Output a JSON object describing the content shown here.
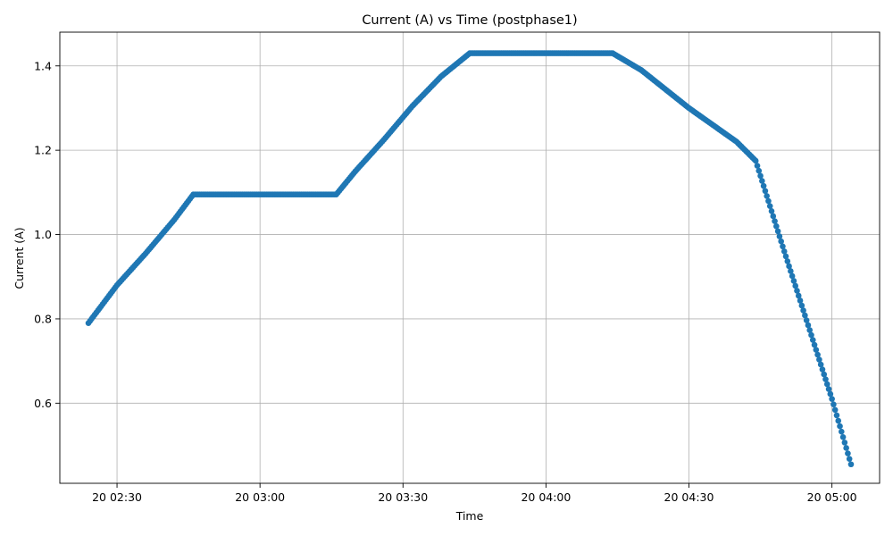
{
  "chart_data": {
    "type": "scatter",
    "title": "Current (A) vs Time (postphase1)",
    "xlabel": "Time",
    "ylabel": "Current (A)",
    "x_unit": "time of day (HH:MM), day 20",
    "xlim": [
      "02:18",
      "05:10"
    ],
    "ylim": [
      0.41,
      1.48
    ],
    "grid": true,
    "color": "#1f77b4",
    "x_ticks": [
      {
        "value": "02:30",
        "label": "20 02:30"
      },
      {
        "value": "03:00",
        "label": "20 03:00"
      },
      {
        "value": "03:30",
        "label": "20 03:30"
      },
      {
        "value": "04:00",
        "label": "20 04:00"
      },
      {
        "value": "04:30",
        "label": "20 04:30"
      },
      {
        "value": "05:00",
        "label": "20 05:00"
      }
    ],
    "y_ticks": [
      {
        "value": 0.6,
        "label": "0.6"
      },
      {
        "value": 0.8,
        "label": "0.8"
      },
      {
        "value": 1.0,
        "label": "1.0"
      },
      {
        "value": 1.2,
        "label": "1.2"
      },
      {
        "value": 1.4,
        "label": "1.4"
      }
    ],
    "series": [
      {
        "x": [
          "02:24",
          "02:30",
          "02:36",
          "02:42",
          "02:46",
          "03:00",
          "03:10",
          "03:16",
          "03:20",
          "03:26",
          "03:32",
          "03:38",
          "03:44",
          "04:00",
          "04:14",
          "04:20",
          "04:30",
          "04:40",
          "04:44",
          "04:50",
          "04:56",
          "05:00",
          "05:04"
        ],
        "y": [
          0.79,
          0.88,
          0.955,
          1.035,
          1.095,
          1.095,
          1.095,
          1.095,
          1.15,
          1.225,
          1.305,
          1.375,
          1.43,
          1.43,
          1.43,
          1.39,
          1.3,
          1.22,
          1.175,
          0.96,
          0.75,
          0.61,
          0.455
        ]
      }
    ]
  }
}
